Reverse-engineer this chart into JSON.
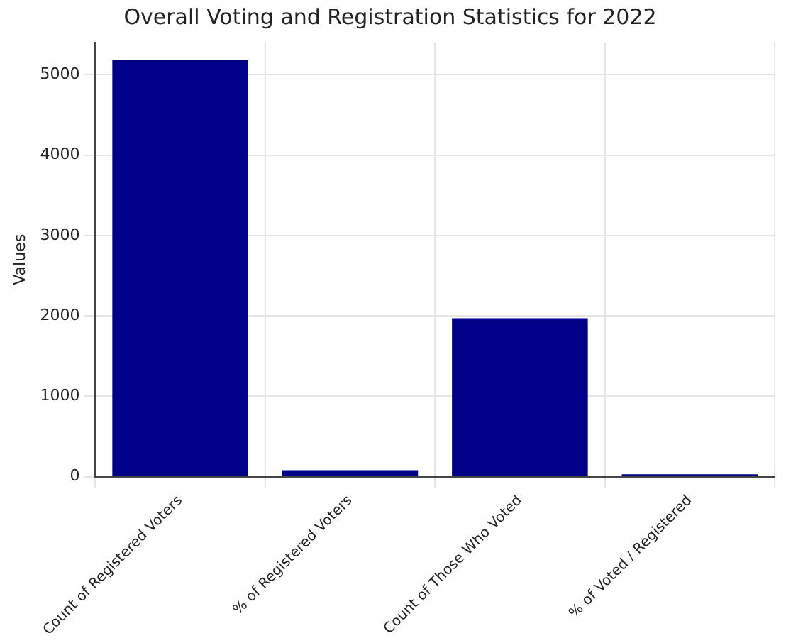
{
  "chart_data": {
    "type": "bar",
    "title": "Overall Voting and Registration Statistics for 2022",
    "ylabel": "Values",
    "categories": [
      "Count of Registered Voters",
      "% of Registered Voters",
      "Count of Those Who Voted",
      "% of Voted / Registered"
    ],
    "values": [
      5180,
      80,
      1970,
      30
    ],
    "color": "#00008b",
    "ylim": [
      0,
      5400
    ],
    "yticks": [
      0,
      1000,
      2000,
      3000,
      4000,
      5000
    ],
    "grid": true
  }
}
